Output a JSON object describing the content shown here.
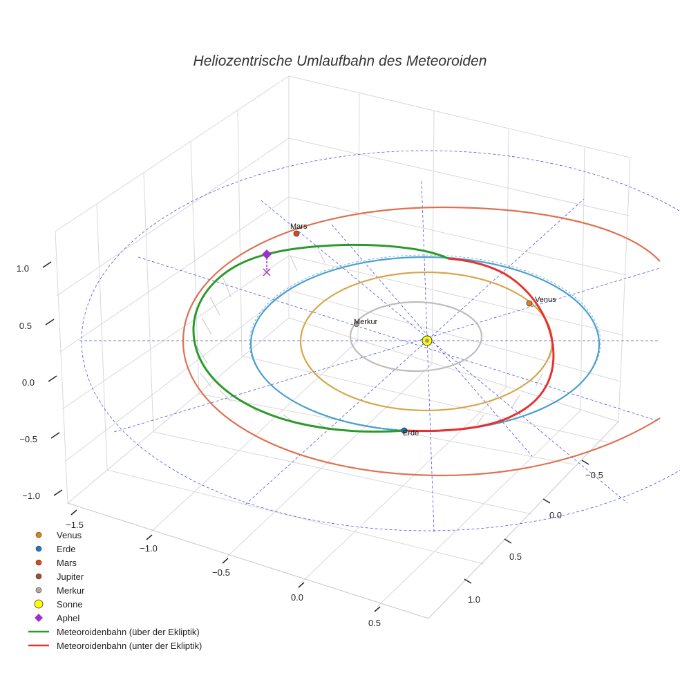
{
  "chart_data": {
    "type": "scatter3d",
    "title": "Heliozentrische Umlaufbahn des Meteoroiden",
    "axes": {
      "x": {
        "ticks": [
          -1.5,
          -1.0,
          -0.5,
          0.0,
          0.5
        ],
        "tick_labels": [
          "−1.5",
          "−1.0",
          "−0.5",
          "0.0",
          "0.5"
        ]
      },
      "y": {
        "ticks": [
          -0.5,
          0.0,
          0.5,
          1.0
        ],
        "tick_labels": [
          "−0.5",
          "0.0",
          "0.5",
          "1.0"
        ]
      },
      "z": {
        "ticks": [
          -1.0,
          -0.5,
          0.0,
          0.5,
          1.0
        ],
        "tick_labels": [
          "−1.0",
          "−0.5",
          "0.0",
          "0.5",
          "1.0"
        ]
      }
    },
    "grid": true,
    "planets": [
      {
        "name": "Venus",
        "label": "Venus",
        "color": "#f28c0f"
      },
      {
        "name": "Erde",
        "label": "Erde",
        "color": "#1f6fd8"
      },
      {
        "name": "Mars",
        "label": "Mars",
        "color": "#e8431c"
      },
      {
        "name": "Jupiter",
        "label": "",
        "color": "#c0522d"
      },
      {
        "name": "Merkur",
        "label": "Merkur",
        "color": "#b0a8a0"
      }
    ],
    "sun": {
      "name": "Sonne",
      "color": "#ffff00"
    },
    "aphel": {
      "name": "Aphel",
      "color": "#9b30d0"
    },
    "orbits": [
      {
        "name": "Merkur",
        "color": "#c0bcb8"
      },
      {
        "name": "Venus",
        "color": "#d6a64a"
      },
      {
        "name": "Erde",
        "color": "#4a9fd0"
      },
      {
        "name": "Mars",
        "color": "#e07050"
      }
    ],
    "meteoroid": [
      {
        "name": "Meteoroidenbahn (über der Ekliptik)",
        "color": "#2a9a2a"
      },
      {
        "name": "Meteoroidenbahn (unter der Ekliptik)",
        "color": "#e83030"
      }
    ],
    "legend": {
      "position": "bottom-left",
      "entries": [
        {
          "label": "Venus",
          "kind": "dot",
          "color": "#e0801a"
        },
        {
          "label": "Erde",
          "kind": "dot",
          "color": "#1f77c4"
        },
        {
          "label": "Mars",
          "kind": "dot",
          "color": "#d84a1c"
        },
        {
          "label": "Jupiter",
          "kind": "dot",
          "color": "#a0522d"
        },
        {
          "label": "Merkur",
          "kind": "dot",
          "color": "#b8a8a0"
        },
        {
          "label": "Sonne",
          "kind": "sun",
          "color": "#ffff00"
        },
        {
          "label": "Aphel",
          "kind": "diamond",
          "color": "#9b30d0"
        },
        {
          "label": "Meteoroidenbahn (über der Ekliptik)",
          "kind": "line",
          "color": "#2a9a2a"
        },
        {
          "label": "Meteoroidenbahn (unter der Ekliptik)",
          "kind": "line",
          "color": "#e83030"
        }
      ]
    }
  }
}
